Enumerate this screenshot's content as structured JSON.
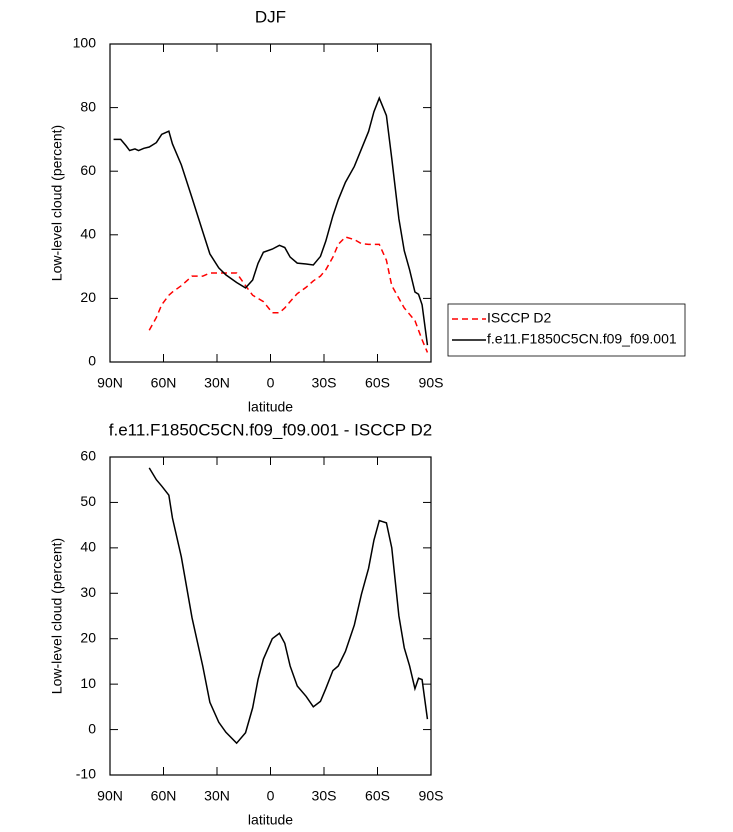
{
  "chart_data": [
    {
      "type": "line",
      "title": "DJF",
      "x_label": "latitude",
      "y_label": "Low-level cloud (percent)",
      "x": [
        88,
        84,
        81,
        79,
        76,
        74,
        71,
        68,
        64,
        61,
        57,
        55,
        50,
        44,
        38,
        34,
        29,
        25,
        19,
        14,
        10,
        7,
        4,
        -1,
        -5,
        -8,
        -11,
        -15,
        -20,
        -24,
        -28,
        -31,
        -35,
        -38,
        -42,
        -47,
        -51,
        -55,
        -58,
        -61,
        -65,
        -68,
        -72,
        -75,
        -78,
        -81,
        -83,
        -85,
        -88
      ],
      "series": [
        {
          "name": "ISCCP D2",
          "color": "#ff0000",
          "style": "dashed",
          "values": [
            null,
            null,
            null,
            null,
            null,
            null,
            null,
            10,
            14,
            18,
            21,
            22,
            24,
            27,
            27,
            28,
            28,
            28,
            28,
            24,
            21,
            20,
            19,
            15.5,
            15.5,
            17,
            19,
            21.5,
            23.5,
            25.5,
            27,
            29,
            33,
            37,
            39.3,
            38.5,
            37.2,
            37,
            37,
            37,
            32,
            24,
            20,
            17,
            15,
            13,
            10,
            7,
            3
          ]
        },
        {
          "name": "f.e11.F1850C5CN.f09_f09.001",
          "color": "#000000",
          "style": "solid",
          "values": [
            70,
            70,
            68,
            66.5,
            67,
            66.5,
            67.2,
            67.6,
            69,
            71.6,
            72.6,
            68.6,
            62,
            51.6,
            41,
            34,
            29.6,
            27.4,
            25,
            23.3,
            25.8,
            31,
            34.5,
            35.5,
            36.7,
            36,
            33,
            31.1,
            30.8,
            30.5,
            33.2,
            38,
            46,
            51,
            56.5,
            61.5,
            67,
            72.5,
            78.7,
            83,
            77.5,
            64,
            45,
            35,
            29,
            22,
            21.3,
            18,
            5.3
          ]
        }
      ],
      "xlim": [
        90,
        -90
      ],
      "xticks": [
        {
          "value": 90,
          "label": "90N"
        },
        {
          "value": 60,
          "label": "60N"
        },
        {
          "value": 30,
          "label": "30N"
        },
        0,
        {
          "value": -30,
          "label": "30S"
        },
        {
          "value": -60,
          "label": "60S"
        },
        {
          "value": -90,
          "label": "90S"
        }
      ],
      "ylim": [
        0,
        100
      ],
      "yticks": [
        0,
        20,
        40,
        60,
        80,
        100
      ],
      "legend": "right"
    },
    {
      "type": "line",
      "title": "f.e11.F1850C5CN.f09_f09.001 - ISCCP D2",
      "x_label": "latitude",
      "y_label": "Low-level cloud (percent)",
      "x": [
        88,
        84,
        81,
        79,
        76,
        74,
        71,
        68,
        64,
        61,
        57,
        55,
        50,
        44,
        38,
        34,
        29,
        25,
        19,
        14,
        10,
        7,
        4,
        -1,
        -5,
        -8,
        -11,
        -15,
        -20,
        -24,
        -28,
        -31,
        -35,
        -38,
        -42,
        -47,
        -51,
        -55,
        -58,
        -61,
        -65,
        -68,
        -72,
        -75,
        -78,
        -81,
        -83,
        -85,
        -88
      ],
      "series": [
        {
          "color": "#000000",
          "style": "solid",
          "values": [
            null,
            null,
            null,
            null,
            null,
            null,
            null,
            57.6,
            55,
            53.6,
            51.6,
            46.6,
            38,
            24.6,
            14,
            6,
            1.6,
            -0.6,
            -3,
            -0.7,
            4.8,
            11,
            15.5,
            20,
            21.2,
            19,
            14,
            9.6,
            7.3,
            5,
            6.2,
            9,
            13,
            14,
            17.2,
            23,
            29.8,
            35.5,
            41.7,
            46,
            45.5,
            40,
            25,
            18,
            14,
            9,
            11.3,
            11,
            2.3
          ]
        }
      ],
      "xlim": [
        90,
        -90
      ],
      "xticks": [
        {
          "value": 90,
          "label": "90N"
        },
        {
          "value": 60,
          "label": "60N"
        },
        {
          "value": 30,
          "label": "30N"
        },
        0,
        {
          "value": -30,
          "label": "30S"
        },
        {
          "value": -60,
          "label": "60S"
        },
        {
          "value": -90,
          "label": "90S"
        }
      ],
      "ylim": [
        -10,
        60
      ],
      "yticks": [
        -10,
        0,
        10,
        20,
        30,
        40,
        50,
        60
      ]
    }
  ]
}
